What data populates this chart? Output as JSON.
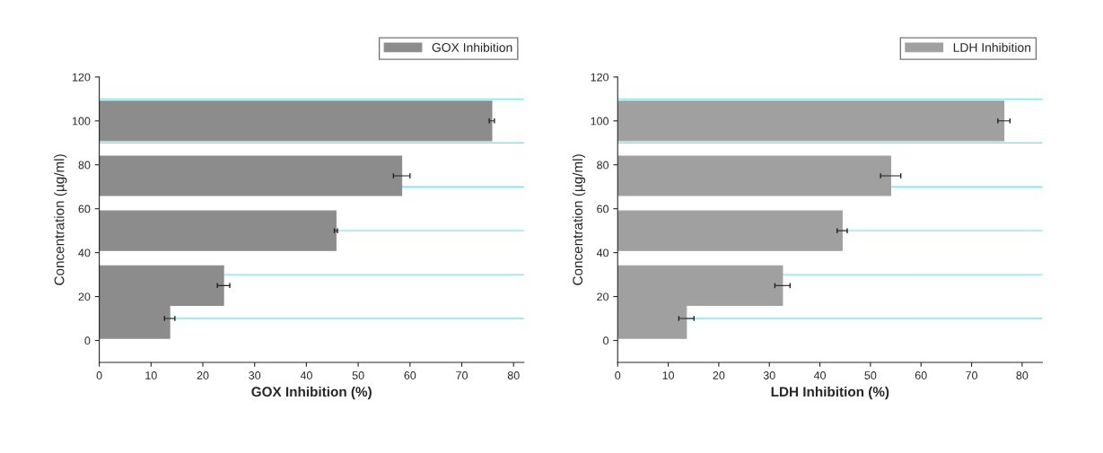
{
  "chart_data": [
    {
      "type": "bar",
      "orientation": "horizontal",
      "xlabel": "GOX Inhibition (%)",
      "ylabel": "Concentration (µg/ml)",
      "x": [
        10,
        25,
        50,
        75,
        100
      ],
      "series": [
        {
          "name": "GOX Inhibition",
          "color": "#8c8c8c",
          "values": [
            13.6,
            24,
            45.7,
            58.4,
            75.8
          ],
          "errors": [
            1,
            1.2,
            0.3,
            1.6,
            0.5
          ]
        }
      ],
      "xlim": [
        0,
        82
      ],
      "xticks": [
        0,
        10,
        20,
        30,
        40,
        50,
        60,
        70,
        80
      ],
      "ylim": [
        -10,
        120
      ],
      "yticks": [
        0,
        20,
        40,
        60,
        80,
        100,
        120
      ],
      "ref_lines": [
        {
          "axis": "y",
          "value": 10,
          "color": "#7fe6ee"
        },
        {
          "axis": "y",
          "value": 30,
          "color": "#7fe6ee"
        },
        {
          "axis": "y",
          "value": 50,
          "color": "#7fe6ee"
        },
        {
          "axis": "y",
          "value": 70,
          "color": "#7fe6ee"
        },
        {
          "axis": "y",
          "value": 90,
          "color": "#7fe6ee"
        },
        {
          "axis": "y",
          "value": 110,
          "color": "#7fe6ee"
        }
      ],
      "legend": "top right"
    },
    {
      "type": "bar",
      "orientation": "horizontal",
      "xlabel": "LDH Inhibition (%)",
      "ylabel": "Concentration (µg/ml)",
      "x": [
        10,
        25,
        50,
        75,
        100
      ],
      "series": [
        {
          "name": "LDH Inhibition",
          "color": "#a0a0a0",
          "values": [
            13.6,
            32.6,
            44.4,
            54,
            76.4
          ],
          "errors": [
            1.5,
            1.5,
            1,
            2,
            1.2
          ]
        }
      ],
      "xlim": [
        0,
        84
      ],
      "xticks": [
        0,
        10,
        20,
        30,
        40,
        50,
        60,
        70,
        80
      ],
      "ylim": [
        -10,
        120
      ],
      "yticks": [
        0,
        20,
        40,
        60,
        80,
        100,
        120
      ],
      "ref_lines": [
        {
          "axis": "y",
          "value": 10,
          "color": "#7fe6ee"
        },
        {
          "axis": "y",
          "value": 30,
          "color": "#7fe6ee"
        },
        {
          "axis": "y",
          "value": 50,
          "color": "#7fe6ee"
        },
        {
          "axis": "y",
          "value": 70,
          "color": "#7fe6ee"
        },
        {
          "axis": "y",
          "value": 90,
          "color": "#7fe6ee"
        },
        {
          "axis": "y",
          "value": 110,
          "color": "#7fe6ee"
        }
      ],
      "legend": "top right"
    }
  ]
}
